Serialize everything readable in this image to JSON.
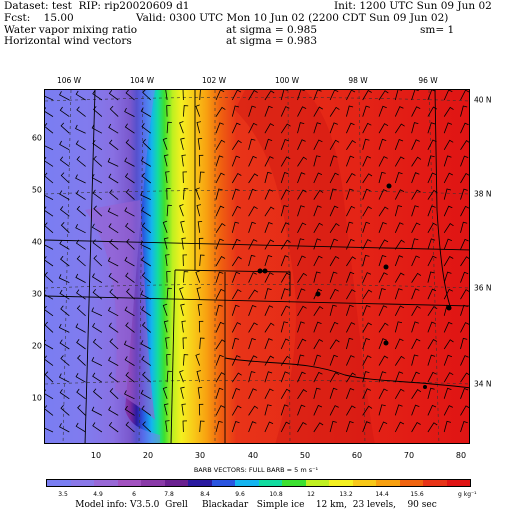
{
  "header": {
    "dataset": "Dataset: test  RIP: rip20020609 d1",
    "init": "Init: 1200 UTC Sun 09 Jun 02",
    "fcst": "Fcst:    15.00",
    "valid": "Valid: 0300 UTC Mon 10 Jun 02 (2200 CDT Sun 09 Jun 02)",
    "field1": "Water vapor mixing ratio",
    "level1": "at sigma = 0.985",
    "sm": "sm= 1",
    "field2": "Horizontal wind vectors",
    "level2": "at sigma = 0.983"
  },
  "map": {
    "lon_labels": [
      "106 W",
      "104 W",
      "102 W",
      "100 W",
      "98 W",
      "96 W"
    ],
    "lat_labels": [
      "40 N",
      "38 N",
      "36 N",
      "34 N"
    ],
    "grid_x_labels": [
      "10",
      "20",
      "30",
      "40",
      "50",
      "60",
      "70",
      "80"
    ],
    "grid_y_labels": [
      "10",
      "20",
      "30",
      "40",
      "50",
      "60"
    ],
    "grid_x_range": [
      1,
      81
    ],
    "grid_y_range": [
      1,
      67
    ]
  },
  "barbs_title": "BARB VECTORS:  FULL BARB = 5 m s⁻¹",
  "colorbar": {
    "colors": [
      "#7a7ef2",
      "#8a78e8",
      "#9868d6",
      "#a252c0",
      "#8a3aa8",
      "#6a2090",
      "#2a1aa0",
      "#2a55e0",
      "#14b4f0",
      "#12dca0",
      "#3ce030",
      "#c0f020",
      "#f4f020",
      "#f8c818",
      "#f8a010",
      "#f06410",
      "#e83418",
      "#e01414"
    ],
    "labels": [
      "3.5",
      "4.9",
      "6",
      "7.8",
      "8.4",
      "9.6",
      "10.8",
      "12",
      "13.2",
      "14.4",
      "15.6"
    ],
    "unit": "g kg⁻¹"
  },
  "footer": "Model info: V3.5.0  Grell     Blackadar   Simple ice    12 km,  23 levels,    90 sec"
}
